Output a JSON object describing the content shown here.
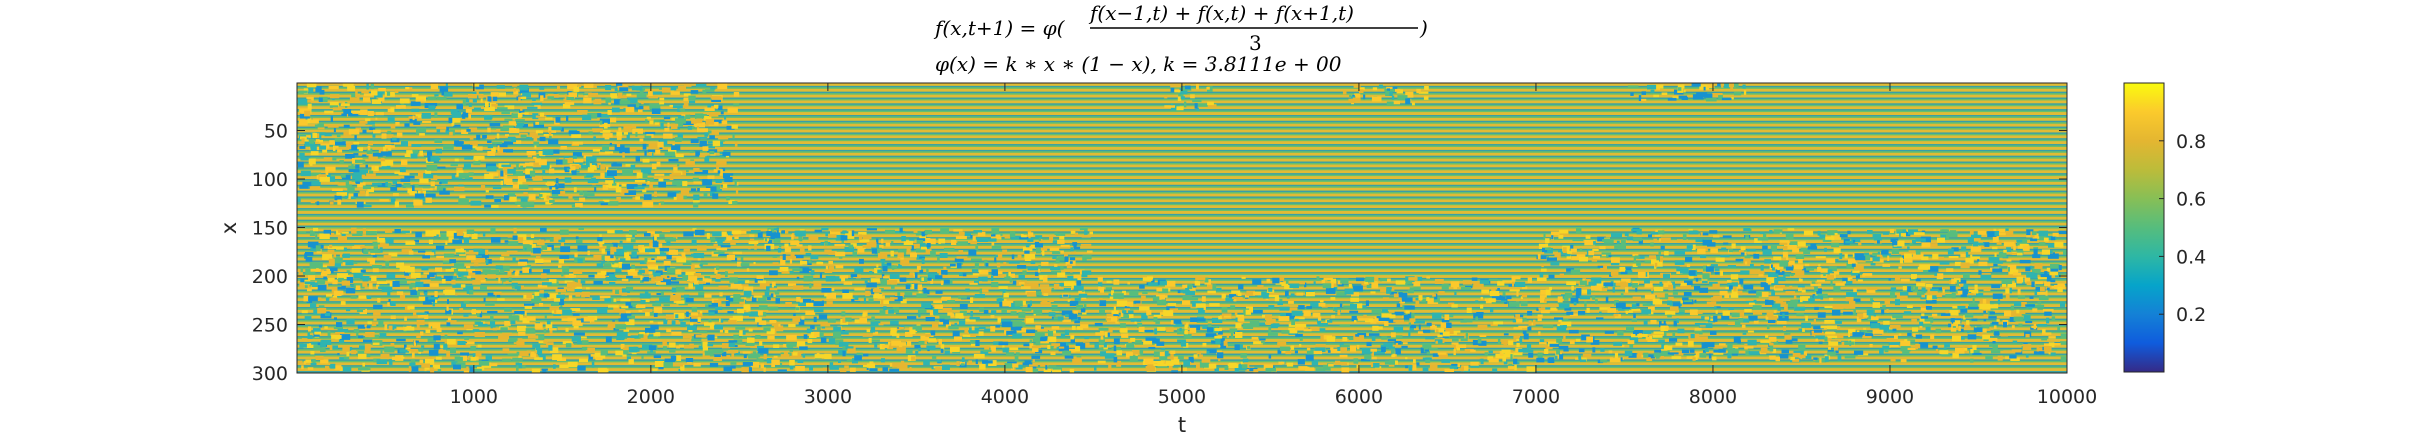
{
  "chart_data": {
    "type": "heatmap",
    "title_line1": {
      "lhs": "f(x,t+1) = φ(",
      "numerator": "f(x−1,t) + f(x,t) + f(x+1,t)",
      "denominator": "3",
      "close": ")"
    },
    "title_line2": "φ(x) = k ∗ x ∗ (1 − x), k = 3.8111e + 00",
    "xlabel": "t",
    "ylabel": "x",
    "xlim": [
      1,
      10000
    ],
    "ylim": [
      1,
      300
    ],
    "y_reversed": true,
    "x_ticks": [
      "1000",
      "2000",
      "3000",
      "4000",
      "5000",
      "6000",
      "7000",
      "8000",
      "9000",
      "10000"
    ],
    "y_ticks": [
      "50",
      "100",
      "150",
      "200",
      "250",
      "300"
    ],
    "colorbar": {
      "colormap": "parula",
      "clim": [
        0,
        1
      ],
      "ticks": [
        "0.2",
        "0.4",
        "0.6",
        "0.8"
      ]
    },
    "chaotic_regions": [
      {
        "t_from": 1,
        "t_to": 2500,
        "x_from": 1,
        "x_to": 130
      },
      {
        "t_from": 1,
        "t_to": 4500,
        "x_from": 150,
        "x_to": 300
      },
      {
        "t_from": 4500,
        "t_to": 7000,
        "x_from": 200,
        "x_to": 300
      },
      {
        "t_from": 7000,
        "t_to": 10000,
        "x_from": 150,
        "x_to": 290
      },
      {
        "t_from": 4900,
        "t_to": 5200,
        "x_from": 1,
        "x_to": 30
      },
      {
        "t_from": 5900,
        "t_to": 6400,
        "x_from": 1,
        "x_to": 25
      },
      {
        "t_from": 7500,
        "t_to": 8200,
        "x_from": 1,
        "x_to": 20
      }
    ]
  }
}
